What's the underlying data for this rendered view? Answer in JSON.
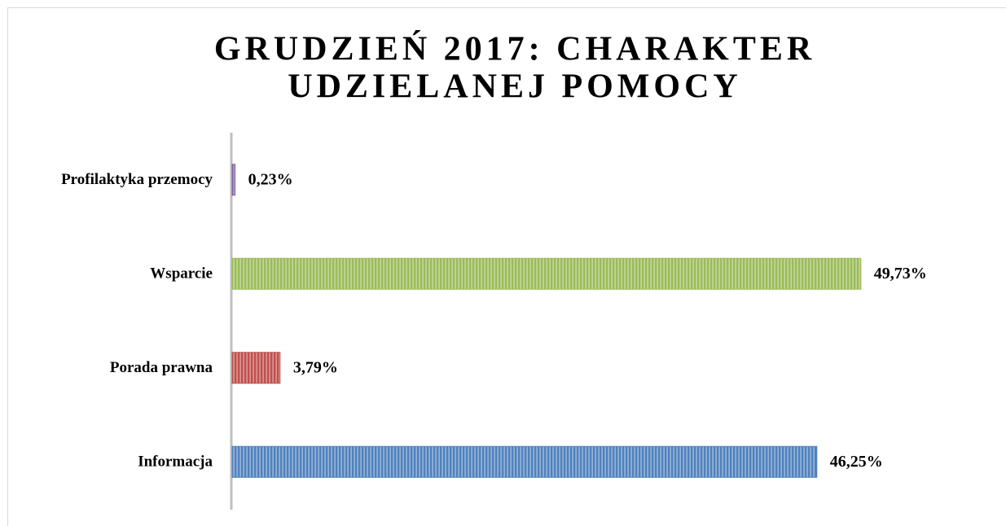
{
  "chart_data": {
    "type": "bar",
    "orientation": "horizontal",
    "title": [
      "GRUDZIEŃ 2017: CHARAKTER",
      "UDZIELANEJ POMOCY"
    ],
    "categories": [
      "Informacja",
      "Porada prawna",
      "Wsparcie",
      "Profilaktyka przemocy"
    ],
    "values": [
      46.25,
      3.79,
      49.73,
      0.23
    ],
    "value_labels": [
      "46,25%",
      "3,79%",
      "49,73%",
      "0,23%"
    ],
    "colors": [
      "#4f81bd",
      "#c0504d",
      "#9bbb59",
      "#8064a2"
    ],
    "xlim": [
      0,
      50
    ]
  }
}
